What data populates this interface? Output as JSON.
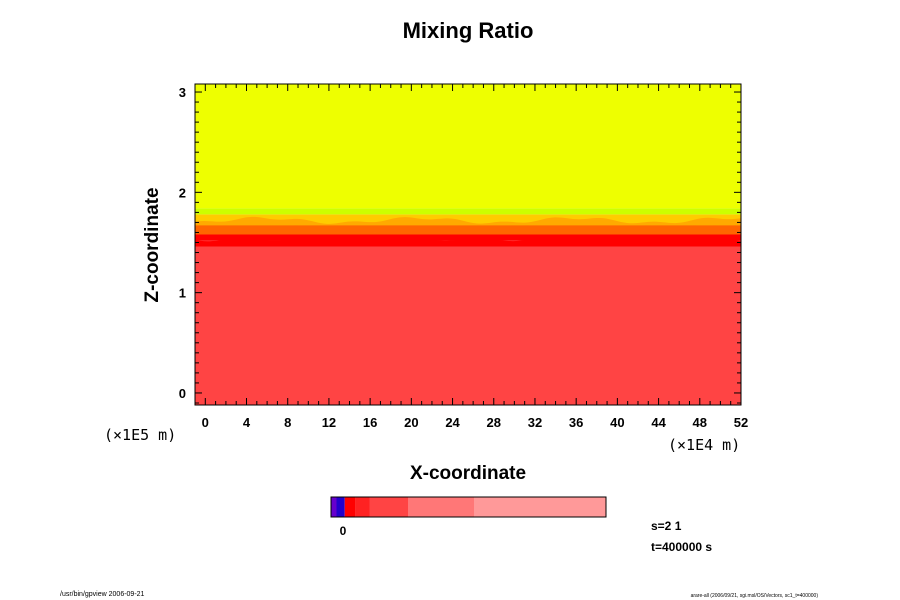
{
  "chart_data": {
    "type": "heatmap",
    "title": "Mixing Ratio",
    "xlabel": "X-coordinate",
    "ylabel": "Z-coordinate",
    "x_ticks": [
      "0",
      "4",
      "8",
      "12",
      "16",
      "20",
      "24",
      "28",
      "32",
      "36",
      "40",
      "44",
      "48",
      "52"
    ],
    "y_ticks": [
      "0",
      "1",
      "2",
      "3"
    ],
    "x_scale_label": "(×1E4 m)",
    "y_scale_label": "(×1E5 m)",
    "xlim": [
      -1,
      52
    ],
    "ylim": [
      -0.12,
      3.08
    ],
    "grid": false,
    "layers": [
      {
        "z_from": 0,
        "z_to": 1.52,
        "color": "#ff4444"
      },
      {
        "z_from": 1.52,
        "z_to": 1.6,
        "color": "#ff0000"
      },
      {
        "z_from": 1.6,
        "z_to": 1.68,
        "color": "#ff6600"
      },
      {
        "z_from": 1.68,
        "z_to": 1.78,
        "color": "#ffcc00"
      },
      {
        "z_from": 1.78,
        "z_to": 1.84,
        "color": "#ccff00"
      },
      {
        "z_from": 1.84,
        "z_to": 3.08,
        "color": "#eeff00"
      }
    ],
    "colorbar": {
      "tick_label": "0",
      "segments": [
        {
          "from": 0.0,
          "to": 0.02,
          "color": "#6600cc"
        },
        {
          "from": 0.02,
          "to": 0.05,
          "color": "#2200cc"
        },
        {
          "from": 0.05,
          "to": 0.09,
          "color": "#ff0000"
        },
        {
          "from": 0.09,
          "to": 0.14,
          "color": "#ff2222"
        },
        {
          "from": 0.14,
          "to": 0.28,
          "color": "#ff4444"
        },
        {
          "from": 0.28,
          "to": 0.52,
          "color": "#ff7777"
        },
        {
          "from": 0.52,
          "to": 1.0,
          "color": "#ff9999"
        }
      ]
    },
    "annotations": {
      "step": "s=2 1",
      "time": "t=400000 s",
      "footer_left": "/usr/bin/gpview 2006-09-21",
      "footer_right": "arare-all (2006/09/21, sgi.msl/OS/Vectors, sc1_t=400000)"
    }
  }
}
